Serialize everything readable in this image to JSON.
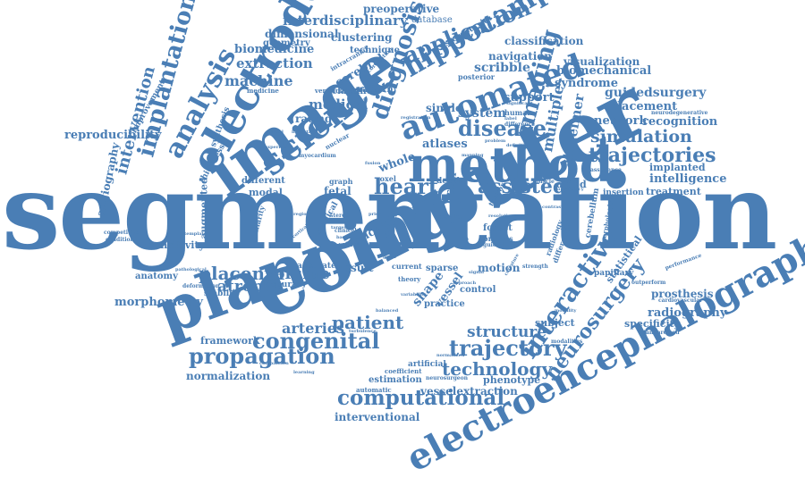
{
  "accent_color": "#4a7eb5",
  "words": {
    "segmentation": "segmentation",
    "computer": "computer",
    "planning": "planning",
    "image": "image",
    "method": "method",
    "electrode": "electrode",
    "electroencephalography": "electroencephalography",
    "science": "science",
    "automated": "automated",
    "analysis": "analysis",
    "diagnosis": "diagnosis",
    "hippocampal": "hippocampal",
    "imaging": "imaging",
    "implantation": "implantation",
    "intervention": "intervention",
    "application": "application",
    "interactive": "interactive",
    "neurosurgery": "neurosurgery",
    "congenital": "congenital",
    "propagation": "propagation",
    "trajectory": "trajectory",
    "computational": "computational",
    "technology": "technology",
    "heart": "heart",
    "assisted": "assisted",
    "disease": "disease",
    "trajectories": "trajectories",
    "simulation": "simulation",
    "placenta": "placenta",
    "volume": "volume",
    "atrophy": "atrophy",
    "patient": "patient",
    "structure": "structure",
    "arteries": "arteries",
    "extraction": "extraction",
    "machine": "machine",
    "medical": "medical",
    "reproducibility": "reproducibility",
    "interdisciplinary": "interdisciplinary",
    "dimensional": "dimensional",
    "biomedicine": "biomedicine",
    "geometry": "geometry",
    "preoperative": "preoperative",
    "database": "database",
    "clustering": "clustering",
    "technique": "technique",
    "classification": "classification",
    "navigation": "navigation",
    "scribble": "scribble",
    "visualization": "visualization",
    "biomechanical": "biomechanical",
    "syndrome": "syndrome",
    "guidedsurgery": "guidedsurgery",
    "placement": "placement",
    "network": "network",
    "recognition": "recognition",
    "implanted": "implanted",
    "intelligence": "intelligence",
    "treatment": "treatment",
    "insertion": "insertion",
    "radiography": "radiography",
    "prosthesis": "prosthesis",
    "specificity": "specificity",
    "morphometry": "morphometry",
    "anatomy": "anatomy",
    "sensitivity": "sensitivity",
    "normalization": "normalization",
    "framework": "framework",
    "interventional": "interventional",
    "vesselextraction": "vesselextraction",
    "phenotype": "phenotype",
    "estimation": "estimation",
    "atlases": "atlases",
    "system": "system",
    "support": "support",
    "single": "single",
    "rating": "rating",
    "cerebral": "cerebral",
    "classifier": "classifier",
    "pattern": "pattern",
    "whole": "whole",
    "fetal": "fetal",
    "modal": "modal",
    "different": "different",
    "augmented": "augmented",
    "result": "result",
    "motion": "motion",
    "accurate": "accurate",
    "stability": "stability",
    "accuracy": "accuracy",
    "subject": "subject",
    "multiple": "multiple",
    "alzheimer": "alzheimer",
    "aided": "aided",
    "statistical": "statistical",
    "angiography": "angiography",
    "improvement": "improvement",
    "thickness": "thickness",
    "synthesis": "synthesis",
    "shape": "shape",
    "vessel": "vessel",
    "atlas": "atlas",
    "slice": "slice",
    "forest": "forest",
    "profiles": "profiles",
    "sparse": "sparse",
    "practice": "practice",
    "control": "control",
    "current": "current",
    "theory": "theory",
    "depth": "depth",
    "brain": "brain",
    "graph": "graph",
    "voxel": "voxel",
    "stereotaxic": "stereotaxic",
    "posterior": "posterior",
    "ventricle": "ventricle",
    "medicine": "medicine",
    "intracranial": "intracranial",
    "correlation": "correlation",
    "cerebellum": "cerebellum",
    "morphological": "morphological",
    "radiology": "radiology",
    "differential": "differential",
    "papillary": "papillary",
    "human": "human",
    "difference": "difference",
    "neurodegenerative": "neurodegenerative",
    "assistance": "assistance",
    "artificial": "artificial",
    "automatic": "automatic",
    "coefficient": "coefficient",
    "neurosurgeon": "neurosurgeon",
    "modalities": "modalities",
    "standardised": "standardised",
    "cardiovascular": "cardiovascular",
    "performance": "performance",
    "outperform": "outperform",
    "strength": "strength",
    "deformation": "deformation",
    "competitive": "competitive",
    "condition": "condition",
    "similarity": "similarity",
    "surgical": "surgical",
    "clinical": "clinical",
    "critical": "critical",
    "scale": "scale",
    "template": "template",
    "cortical": "cortical",
    "important": "important",
    "experiment": "experiment",
    "myocardium": "myocardium",
    "nuclear": "nuclear",
    "stereo": "stereo",
    "based": "based",
    "great": "great",
    "approach": "approach",
    "modality": "modality",
    "normalized": "normalized",
    "target": "target",
    "problem": "problem",
    "significant": "significant",
    "muscle": "muscle",
    "consistency": "consistency",
    "curvature": "curvature",
    "balanced": "balanced",
    "variability": "variability",
    "definition": "definition",
    "comparison": "comparison",
    "learning": "learning",
    "turbulence": "turbulence",
    "resolution": "resolution",
    "guided": "guided",
    "tensor": "tensor",
    "mapping": "mapping",
    "pathological": "pathological",
    "registration": "registration",
    "prior": "prior",
    "label": "label",
    "fusion": "fusion",
    "region": "region",
    "spatial": "spatial",
    "signal": "signal",
    "contrast": "contrast",
    "cortex": "cortex"
  }
}
